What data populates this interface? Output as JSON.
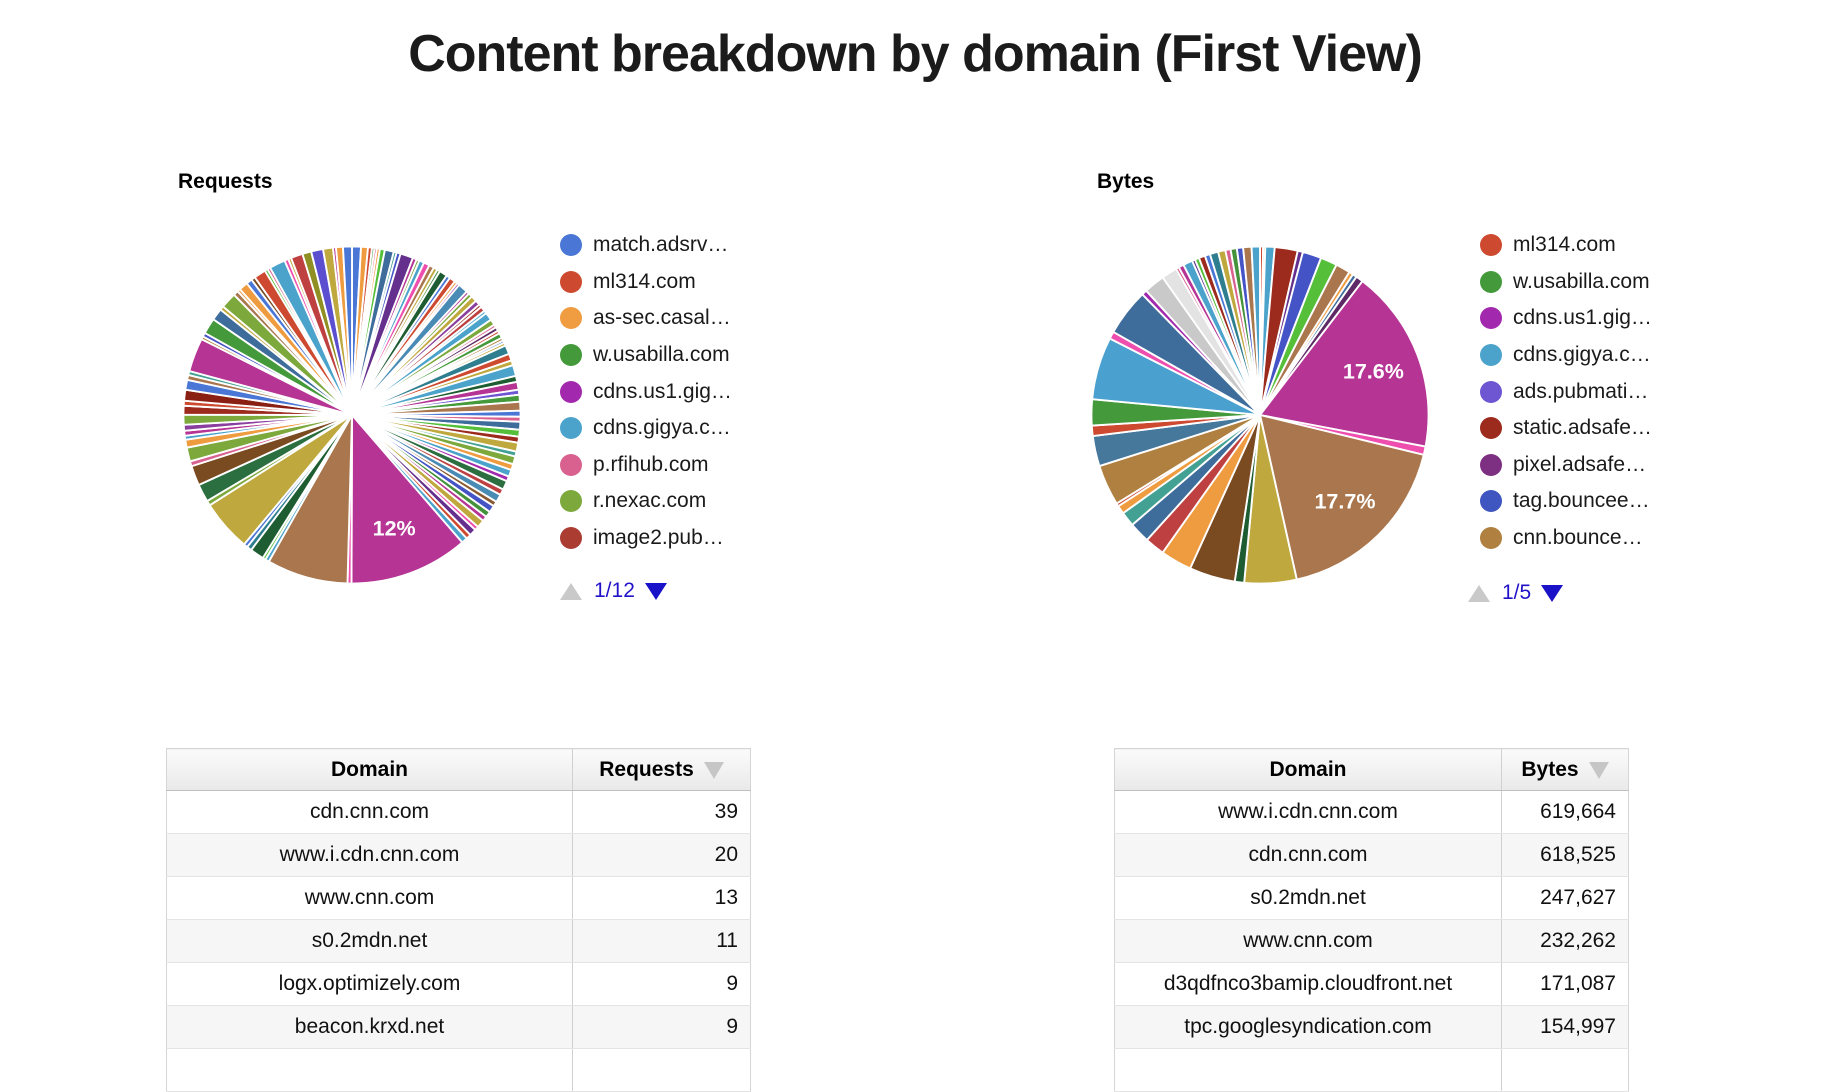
{
  "page": {
    "title": "Content breakdown by domain (First View)"
  },
  "chart_data": [
    {
      "id": "requests_pie",
      "type": "pie",
      "title": "Requests",
      "legend_position": "right",
      "pagination": "1/12",
      "legend": [
        {
          "label": "match.adsrv…",
          "color": "#4a77d5"
        },
        {
          "label": "ml314.com",
          "color": "#cd4a30"
        },
        {
          "label": "as-sec.casal…",
          "color": "#f09c41"
        },
        {
          "label": "w.usabilla.com",
          "color": "#449a3b"
        },
        {
          "label": "cdns.us1.gig…",
          "color": "#a229ad"
        },
        {
          "label": "cdns.gigya.c…",
          "color": "#4ba3cb"
        },
        {
          "label": "p.rfihub.com",
          "color": "#d8618f"
        },
        {
          "label": "r.nexac.com",
          "color": "#7ca83c"
        },
        {
          "label": "image2.pub…",
          "color": "#ab3c32"
        }
      ],
      "labeled_slices": [
        {
          "label": "12%",
          "value_pct": 12
        }
      ],
      "slices": [
        [
          0.9,
          "#4a77d5"
        ],
        [
          0.7,
          "#ef9b3f"
        ],
        [
          0.4,
          "#cd4a30"
        ],
        [
          0.25,
          "#449a3b"
        ],
        [
          0.25,
          "#d8618f"
        ],
        [
          0.3,
          "#ef9b3f"
        ],
        [
          0.5,
          "#55bf3a"
        ],
        [
          0.9,
          "#3e6d9c"
        ],
        [
          0.3,
          "#43a193"
        ],
        [
          0.4,
          "#4453c6"
        ],
        [
          1.3,
          "#65308d"
        ],
        [
          0.4,
          "#b53494"
        ],
        [
          0.3,
          "#7ca83c"
        ],
        [
          0.5,
          "#4ba3cb"
        ],
        [
          0.6,
          "#ee4fae"
        ],
        [
          0.5,
          "#a9764d"
        ],
        [
          0.4,
          "#bfa93e"
        ],
        [
          0.3,
          "#44923c"
        ],
        [
          0.8,
          "#1e5c31"
        ],
        [
          0.4,
          "#4a77d5"
        ],
        [
          0.6,
          "#cd4a30"
        ],
        [
          0.3,
          "#ef9b3f"
        ],
        [
          0.25,
          "#a229ad"
        ],
        [
          1.0,
          "#4a8bb5"
        ],
        [
          0.3,
          "#b53494"
        ],
        [
          0.4,
          "#7ca83c"
        ],
        [
          0.6,
          "#bfa93e"
        ],
        [
          0.5,
          "#8a3f9e"
        ],
        [
          0.3,
          "#9c2a1d"
        ],
        [
          0.5,
          "#bf4040"
        ],
        [
          0.3,
          "#4ba3cb"
        ],
        [
          0.8,
          "#4ba3cb"
        ],
        [
          0.6,
          "#7ca83c"
        ],
        [
          0.3,
          "#d8618f"
        ],
        [
          0.4,
          "#5e2a66"
        ],
        [
          0.3,
          "#cd4a30"
        ],
        [
          0.5,
          "#449a3b"
        ],
        [
          0.3,
          "#b08040"
        ],
        [
          0.25,
          "#4a77d5"
        ],
        [
          0.3,
          "#bfa93e"
        ],
        [
          0.9,
          "#2e7e8f"
        ],
        [
          0.7,
          "#cd4a30"
        ],
        [
          0.5,
          "#bfa93e"
        ],
        [
          1.1,
          "#4ba3cb"
        ],
        [
          0.6,
          "#1e5c31"
        ],
        [
          0.8,
          "#b53494"
        ],
        [
          0.5,
          "#6e56d2"
        ],
        [
          0.7,
          "#449a3b"
        ],
        [
          0.9,
          "#a9764d"
        ],
        [
          0.6,
          "#4a77d5"
        ],
        [
          0.5,
          "#d8618f"
        ],
        [
          0.8,
          "#3e6d9c"
        ],
        [
          0.7,
          "#55bf3a"
        ],
        [
          0.6,
          "#9c2a1d"
        ],
        [
          0.9,
          "#bfa93e"
        ],
        [
          0.5,
          "#43a193"
        ],
        [
          0.8,
          "#7ca83c"
        ],
        [
          0.6,
          "#ef9b3f"
        ],
        [
          0.7,
          "#4ba3cb"
        ],
        [
          0.5,
          "#a229ad"
        ],
        [
          0.9,
          "#2b6e3f"
        ],
        [
          0.6,
          "#bf4040"
        ],
        [
          0.8,
          "#4a8bb5"
        ],
        [
          0.5,
          "#8a5a33"
        ],
        [
          0.7,
          "#4453c6"
        ],
        [
          0.6,
          "#44923c"
        ],
        [
          0.5,
          "#b53494"
        ],
        [
          0.8,
          "#bfa93e"
        ],
        [
          0.4,
          "#ee4fae"
        ],
        [
          0.7,
          "#65308d"
        ],
        [
          0.5,
          "#cd4a30"
        ],
        [
          0.6,
          "#4ba3cb"
        ],
        [
          12.0,
          "#b53494",
          "12%"
        ],
        [
          0.4,
          "#ee4fae"
        ],
        [
          8.2,
          "#a9764d"
        ],
        [
          0.4,
          "#4ba3cb"
        ],
        [
          0.3,
          "#55bf3a"
        ],
        [
          1.4,
          "#1e5c31"
        ],
        [
          0.5,
          "#2e7e8f"
        ],
        [
          0.4,
          "#4a77d5"
        ],
        [
          5.2,
          "#bfa93e"
        ],
        [
          0.5,
          "#7ca83c"
        ],
        [
          1.8,
          "#2b6e3f"
        ],
        [
          2.0,
          "#7a4a21"
        ],
        [
          0.5,
          "#d8618f"
        ],
        [
          1.4,
          "#7ca83c"
        ],
        [
          0.8,
          "#ef9b3f"
        ],
        [
          0.4,
          "#4ba3cb"
        ],
        [
          0.5,
          "#b53494"
        ],
        [
          0.6,
          "#8a3f9e"
        ],
        [
          1.0,
          "#7ca83c"
        ],
        [
          0.9,
          "#9c2a1d"
        ],
        [
          0.5,
          "#cd4a30"
        ],
        [
          1.1,
          "#8a1f14"
        ],
        [
          1.0,
          "#4a77d5"
        ],
        [
          0.5,
          "#a9764d"
        ],
        [
          0.4,
          "#43a193"
        ],
        [
          3.4,
          "#b53494"
        ],
        [
          0.3,
          "#b08040"
        ],
        [
          0.4,
          "#4453c6"
        ],
        [
          1.6,
          "#449a3b"
        ],
        [
          1.2,
          "#3e6d9c"
        ],
        [
          0.4,
          "#bfa93e"
        ],
        [
          1.6,
          "#7ca83c"
        ],
        [
          0.5,
          "#a9764d"
        ],
        [
          0.3,
          "#ef9b3f"
        ],
        [
          0.9,
          "#ef9b3f"
        ],
        [
          0.6,
          "#4a77d5"
        ],
        [
          0.4,
          "#7a4a21"
        ],
        [
          1.2,
          "#cd4a30"
        ],
        [
          0.3,
          "#55bf3a"
        ],
        [
          0.3,
          "#d8618f"
        ],
        [
          1.6,
          "#4ba3cb"
        ],
        [
          0.4,
          "#ee4fae"
        ],
        [
          0.3,
          "#bfa93e"
        ],
        [
          1.2,
          "#bf4040"
        ],
        [
          0.9,
          "#8f8f23"
        ],
        [
          1.2,
          "#5b4fd0"
        ],
        [
          1.0,
          "#bfa93e"
        ],
        [
          0.3,
          "#b53494"
        ],
        [
          0.7,
          "#ef9b3f"
        ],
        [
          0.9,
          "#4a77d5"
        ]
      ]
    },
    {
      "id": "bytes_pie",
      "type": "pie",
      "title": "Bytes",
      "legend_position": "right",
      "pagination": "1/5",
      "legend": [
        {
          "label": "ml314.com",
          "color": "#cd4a30"
        },
        {
          "label": "w.usabilla.com",
          "color": "#449a3b"
        },
        {
          "label": "cdns.us1.gig…",
          "color": "#a229ad"
        },
        {
          "label": "cdns.gigya.c…",
          "color": "#4ba3cb"
        },
        {
          "label": "ads.pubmati…",
          "color": "#6e56d2"
        },
        {
          "label": "static.adsafe…",
          "color": "#9c2a1d"
        },
        {
          "label": "pixel.adsafe…",
          "color": "#7d2f81"
        },
        {
          "label": "tag.bouncee…",
          "color": "#3f55c0"
        },
        {
          "label": "cnn.bounce…",
          "color": "#b08040"
        }
      ],
      "labeled_slices": [
        {
          "label": "17.6%",
          "value_pct": 17.6
        },
        {
          "label": "17.7%",
          "value_pct": 17.7
        }
      ],
      "slices": [
        [
          0.3,
          "#cd4a30"
        ],
        [
          0.2,
          "#449a3b"
        ],
        [
          0.9,
          "#4ba3cb"
        ],
        [
          2.2,
          "#9c2a1d"
        ],
        [
          0.5,
          "#65308d"
        ],
        [
          1.8,
          "#4453c6"
        ],
        [
          1.6,
          "#55bf3a"
        ],
        [
          1.4,
          "#a9764d"
        ],
        [
          0.4,
          "#ef9b3f"
        ],
        [
          0.4,
          "#3e6d9c"
        ],
        [
          0.7,
          "#5e2a66"
        ],
        [
          17.6,
          "#b53494",
          "17.6%"
        ],
        [
          0.8,
          "#ee4fae"
        ],
        [
          17.7,
          "#a9764d",
          "17.7%"
        ],
        [
          5.0,
          "#bfa93e"
        ],
        [
          0.9,
          "#1e5c31"
        ],
        [
          4.4,
          "#7a4a21"
        ],
        [
          3.0,
          "#ef9b3f"
        ],
        [
          1.9,
          "#bf4040"
        ],
        [
          2.0,
          "#3e6d9c"
        ],
        [
          1.4,
          "#43a193"
        ],
        [
          0.8,
          "#ef9b3f"
        ],
        [
          0.3,
          "#cd4a30"
        ],
        [
          3.9,
          "#b08040"
        ],
        [
          2.9,
          "#46789c"
        ],
        [
          1.0,
          "#cd4a30"
        ],
        [
          2.5,
          "#449a3b"
        ],
        [
          6.0,
          "#4aa0cf"
        ],
        [
          0.7,
          "#ee4fae"
        ],
        [
          4.5,
          "#3e6d9c"
        ],
        [
          0.5,
          "#a229ad"
        ],
        [
          2.0,
          "#c9c9c9"
        ],
        [
          1.5,
          "#e3e3e3"
        ],
        [
          0.3,
          "#d8618f"
        ],
        [
          0.5,
          "#b53494"
        ],
        [
          0.9,
          "#4ba3cb"
        ],
        [
          0.3,
          "#65308d"
        ],
        [
          0.4,
          "#55bf3a"
        ],
        [
          0.6,
          "#9c2a1d"
        ],
        [
          0.5,
          "#4a77d5"
        ],
        [
          0.8,
          "#2e7e8f"
        ],
        [
          0.7,
          "#bfa93e"
        ],
        [
          0.5,
          "#d8618f"
        ],
        [
          0.6,
          "#44923c"
        ],
        [
          0.6,
          "#4453c6"
        ],
        [
          0.8,
          "#a9764d"
        ],
        [
          0.8,
          "#4ba3cb"
        ]
      ]
    },
    {
      "id": "requests_table",
      "type": "table",
      "headers": [
        "Domain",
        "Requests"
      ],
      "sort": {
        "column": "Requests",
        "direction": "desc"
      },
      "rows": [
        [
          "cdn.cnn.com",
          "39"
        ],
        [
          "www.i.cdn.cnn.com",
          "20"
        ],
        [
          "www.cnn.com",
          "13"
        ],
        [
          "s0.2mdn.net",
          "11"
        ],
        [
          "logx.optimizely.com",
          "9"
        ],
        [
          "beacon.krxd.net",
          "9"
        ]
      ]
    },
    {
      "id": "bytes_table",
      "type": "table",
      "headers": [
        "Domain",
        "Bytes"
      ],
      "sort": {
        "column": "Bytes",
        "direction": "desc"
      },
      "rows": [
        [
          "www.i.cdn.cnn.com",
          "619,664"
        ],
        [
          "cdn.cnn.com",
          "618,525"
        ],
        [
          "s0.2mdn.net",
          "247,627"
        ],
        [
          "www.cnn.com",
          "232,262"
        ],
        [
          "d3qdfnco3bamip.cloudfront.net",
          "171,087"
        ],
        [
          "tpc.googlesyndication.com",
          "154,997"
        ]
      ]
    }
  ]
}
